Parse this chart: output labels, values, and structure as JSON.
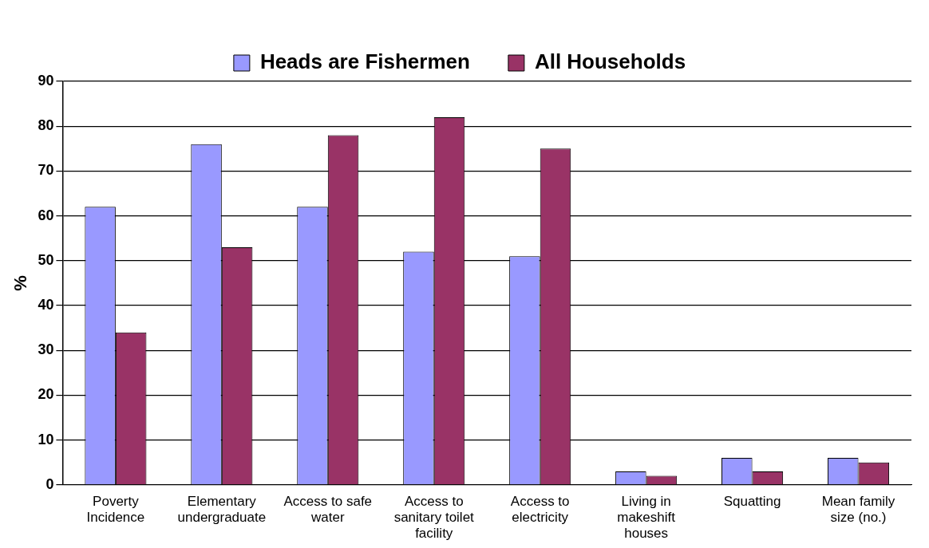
{
  "chart_data": {
    "type": "bar",
    "ylabel": "%",
    "categories": [
      "Poverty Incidence",
      "Elementary undergraduate",
      "Access to safe water",
      "Access to sanitary toilet facility",
      "Access to electricity",
      "Living in makeshift houses",
      "Squatting",
      "Mean family size (no.)"
    ],
    "series": [
      {
        "name": "Heads are Fishermen",
        "color": "#9999ff",
        "values": [
          62,
          76,
          62,
          52,
          51,
          3,
          6,
          6
        ]
      },
      {
        "name": "All Households",
        "color": "#993366",
        "values": [
          34,
          53,
          78,
          82,
          75,
          2,
          3,
          5
        ]
      }
    ],
    "ylim": [
      0,
      90
    ],
    "yticks": [
      0,
      10,
      20,
      30,
      40,
      50,
      60,
      70,
      80,
      90
    ],
    "grid": "y",
    "legend": "top"
  }
}
